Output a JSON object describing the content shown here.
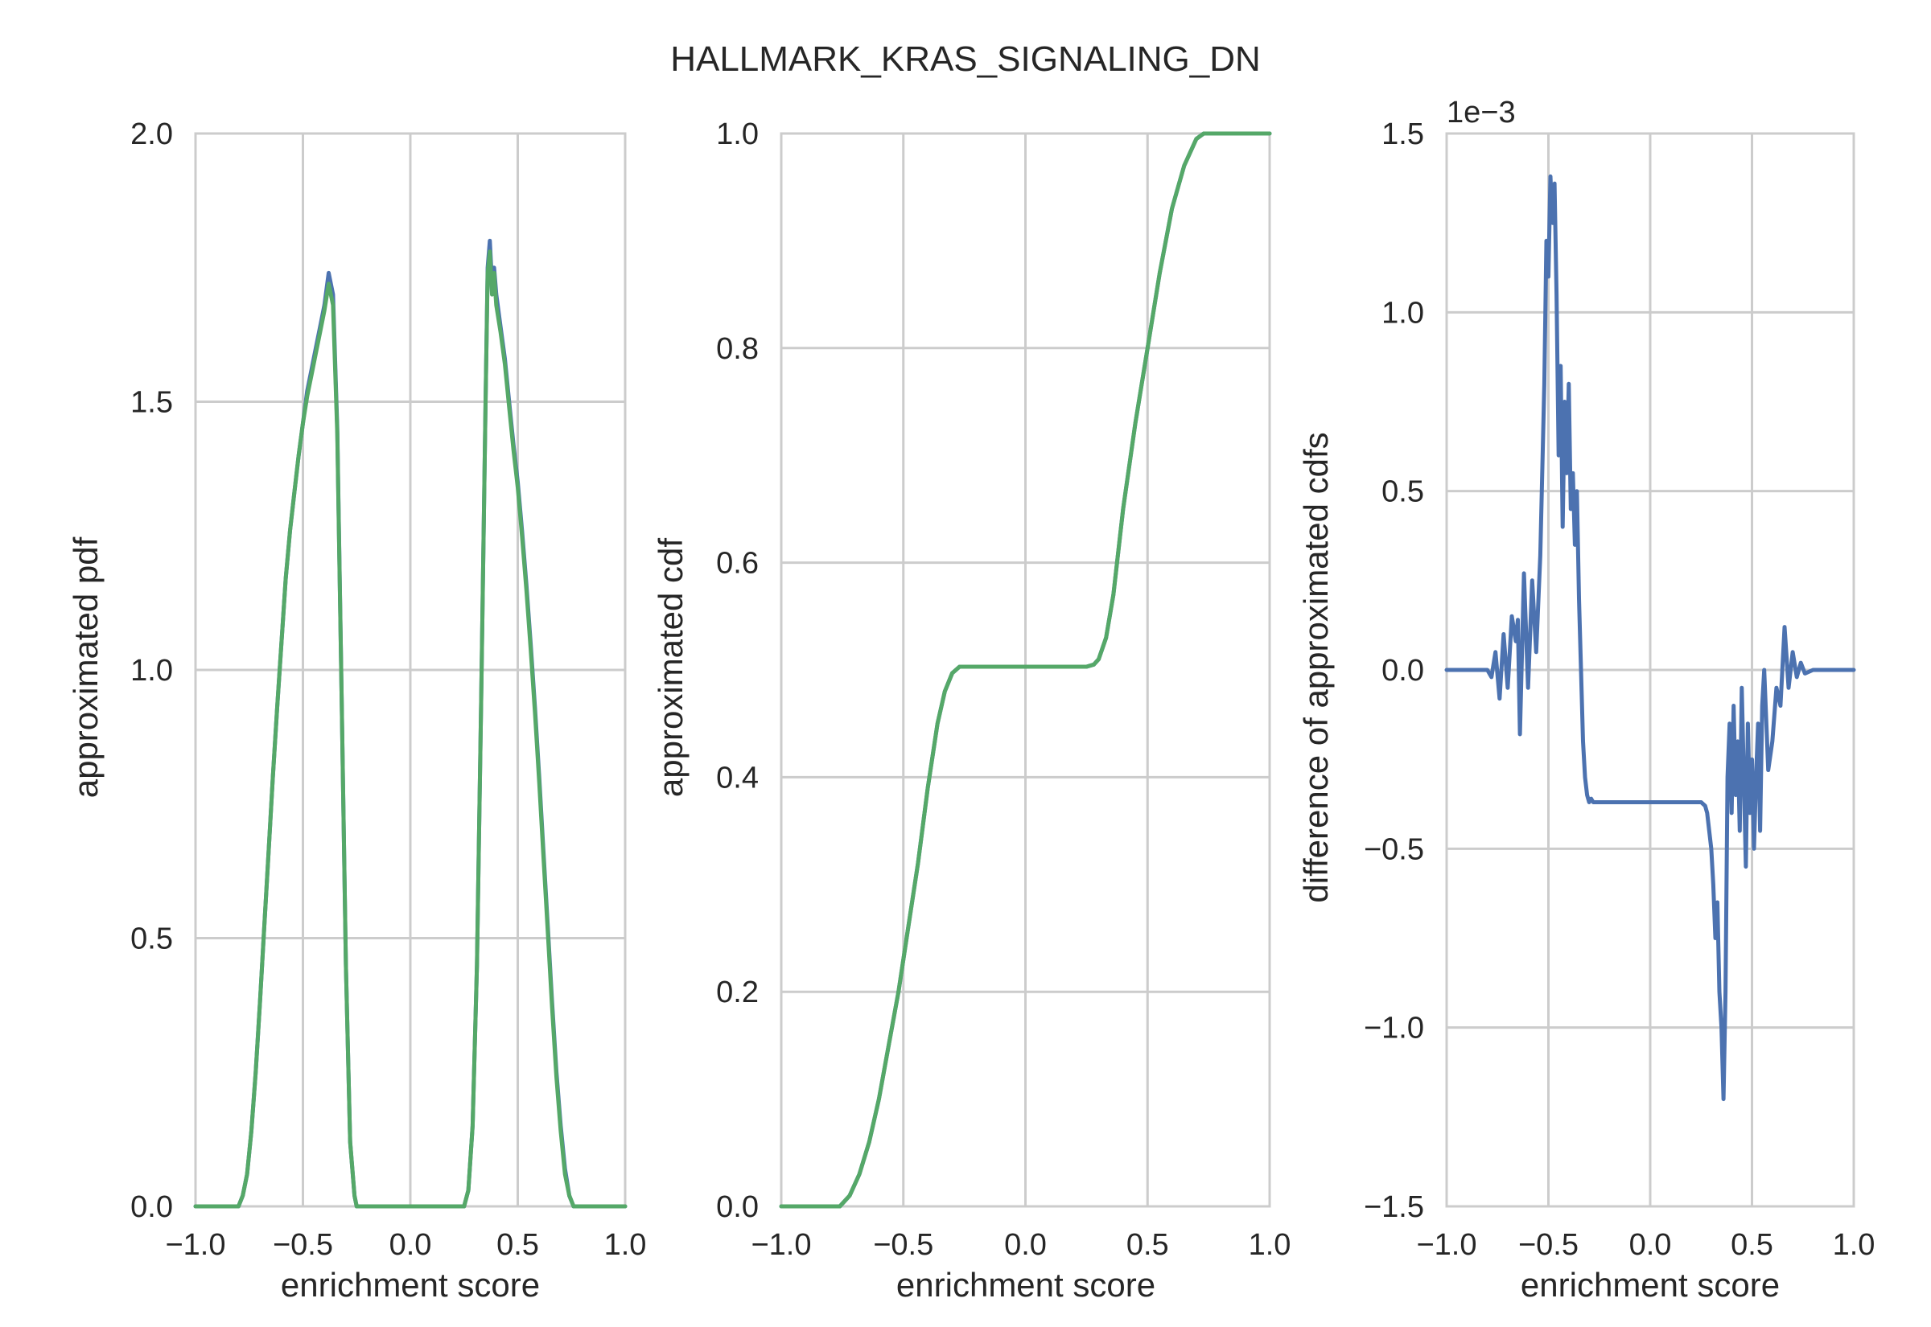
{
  "figure": {
    "title": "HALLMARK_KRAS_SIGNALING_DN"
  },
  "colors": {
    "blue": "#4c72b0",
    "green": "#55a868",
    "grid": "#cccccc",
    "text": "#262626"
  },
  "chart_data": [
    {
      "type": "line",
      "xlabel": "enrichment score",
      "ylabel": "approximated pdf",
      "xlim": [
        -1.0,
        1.0
      ],
      "ylim": [
        0.0,
        2.0
      ],
      "xticks": [
        -1.0,
        -0.5,
        0.0,
        0.5,
        1.0
      ],
      "xtick_labels": [
        "−1.0",
        "−0.5",
        "0.0",
        "0.5",
        "1.0"
      ],
      "yticks": [
        0.0,
        0.5,
        1.0,
        1.5,
        2.0
      ],
      "ytick_labels": [
        "0.0",
        "0.5",
        "1.0",
        "1.5",
        "2.0"
      ],
      "grid": true,
      "series": [
        {
          "color": "#4c72b0",
          "x": [
            -1.0,
            -0.8,
            -0.78,
            -0.76,
            -0.74,
            -0.72,
            -0.7,
            -0.68,
            -0.66,
            -0.64,
            -0.62,
            -0.6,
            -0.58,
            -0.56,
            -0.54,
            -0.52,
            -0.5,
            -0.48,
            -0.46,
            -0.44,
            -0.42,
            -0.4,
            -0.38,
            -0.36,
            -0.34,
            -0.32,
            -0.3,
            -0.28,
            -0.26,
            -0.25,
            0.25,
            0.27,
            0.29,
            0.31,
            0.33,
            0.35,
            0.36,
            0.37,
            0.38,
            0.39,
            0.4,
            0.42,
            0.44,
            0.46,
            0.48,
            0.5,
            0.52,
            0.54,
            0.56,
            0.58,
            0.6,
            0.62,
            0.64,
            0.66,
            0.68,
            0.7,
            0.72,
            0.74,
            0.76,
            0.78,
            0.8,
            1.0
          ],
          "y": [
            0.0,
            0.0,
            0.02,
            0.06,
            0.14,
            0.25,
            0.38,
            0.52,
            0.66,
            0.8,
            0.93,
            1.05,
            1.17,
            1.26,
            1.33,
            1.4,
            1.46,
            1.52,
            1.56,
            1.6,
            1.64,
            1.68,
            1.74,
            1.7,
            1.45,
            0.95,
            0.45,
            0.12,
            0.02,
            0.0,
            0.0,
            0.03,
            0.15,
            0.45,
            0.95,
            1.5,
            1.75,
            1.8,
            1.72,
            1.75,
            1.7,
            1.64,
            1.58,
            1.5,
            1.42,
            1.35,
            1.26,
            1.16,
            1.05,
            0.93,
            0.8,
            0.66,
            0.52,
            0.38,
            0.25,
            0.15,
            0.07,
            0.02,
            0.0,
            0.0,
            0.0,
            0.0
          ]
        },
        {
          "color": "#55a868",
          "x": [
            -1.0,
            -0.8,
            -0.78,
            -0.76,
            -0.74,
            -0.72,
            -0.7,
            -0.68,
            -0.66,
            -0.64,
            -0.62,
            -0.6,
            -0.58,
            -0.56,
            -0.54,
            -0.52,
            -0.5,
            -0.48,
            -0.46,
            -0.44,
            -0.42,
            -0.4,
            -0.38,
            -0.36,
            -0.34,
            -0.32,
            -0.3,
            -0.28,
            -0.26,
            -0.25,
            0.25,
            0.27,
            0.29,
            0.31,
            0.33,
            0.35,
            0.36,
            0.37,
            0.38,
            0.39,
            0.4,
            0.42,
            0.44,
            0.46,
            0.48,
            0.5,
            0.52,
            0.54,
            0.56,
            0.58,
            0.6,
            0.62,
            0.64,
            0.66,
            0.68,
            0.7,
            0.72,
            0.74,
            0.76,
            0.78,
            0.8,
            1.0
          ],
          "y": [
            0.0,
            0.0,
            0.02,
            0.06,
            0.14,
            0.25,
            0.38,
            0.52,
            0.66,
            0.8,
            0.93,
            1.05,
            1.17,
            1.26,
            1.33,
            1.4,
            1.46,
            1.51,
            1.55,
            1.59,
            1.63,
            1.67,
            1.72,
            1.68,
            1.44,
            0.95,
            0.45,
            0.12,
            0.02,
            0.0,
            0.0,
            0.03,
            0.15,
            0.45,
            0.95,
            1.5,
            1.74,
            1.78,
            1.7,
            1.74,
            1.68,
            1.63,
            1.57,
            1.49,
            1.41,
            1.34,
            1.25,
            1.15,
            1.04,
            0.92,
            0.79,
            0.65,
            0.51,
            0.37,
            0.24,
            0.14,
            0.06,
            0.02,
            0.0,
            0.0,
            0.0,
            0.0
          ]
        }
      ]
    },
    {
      "type": "line",
      "xlabel": "enrichment score",
      "ylabel": "approximated cdf",
      "xlim": [
        -1.0,
        1.0
      ],
      "ylim": [
        0.0,
        1.0
      ],
      "xticks": [
        -1.0,
        -0.5,
        0.0,
        0.5,
        1.0
      ],
      "xtick_labels": [
        "−1.0",
        "−0.5",
        "0.0",
        "0.5",
        "1.0"
      ],
      "yticks": [
        0.0,
        0.2,
        0.4,
        0.6,
        0.8,
        1.0
      ],
      "ytick_labels": [
        "0.0",
        "0.2",
        "0.4",
        "0.6",
        "0.8",
        "1.0"
      ],
      "grid": true,
      "series": [
        {
          "color": "#4c72b0",
          "x": [
            -1.0,
            -0.76,
            -0.72,
            -0.68,
            -0.64,
            -0.6,
            -0.56,
            -0.52,
            -0.48,
            -0.44,
            -0.4,
            -0.36,
            -0.33,
            -0.3,
            -0.27,
            -0.25,
            0.25,
            0.28,
            0.3,
            0.33,
            0.36,
            0.4,
            0.45,
            0.5,
            0.55,
            0.6,
            0.65,
            0.7,
            0.73,
            0.76,
            1.0
          ],
          "y": [
            0.0,
            0.0,
            0.01,
            0.03,
            0.06,
            0.1,
            0.15,
            0.2,
            0.26,
            0.32,
            0.39,
            0.45,
            0.48,
            0.497,
            0.503,
            0.503,
            0.503,
            0.505,
            0.51,
            0.53,
            0.57,
            0.65,
            0.73,
            0.8,
            0.87,
            0.93,
            0.97,
            0.995,
            1.0,
            1.0,
            1.0
          ]
        },
        {
          "color": "#55a868",
          "x": [
            -1.0,
            -0.76,
            -0.72,
            -0.68,
            -0.64,
            -0.6,
            -0.56,
            -0.52,
            -0.48,
            -0.44,
            -0.4,
            -0.36,
            -0.33,
            -0.3,
            -0.27,
            -0.25,
            0.25,
            0.28,
            0.3,
            0.33,
            0.36,
            0.4,
            0.45,
            0.5,
            0.55,
            0.6,
            0.65,
            0.7,
            0.73,
            0.76,
            1.0
          ],
          "y": [
            0.0,
            0.0,
            0.01,
            0.03,
            0.06,
            0.1,
            0.15,
            0.2,
            0.26,
            0.32,
            0.39,
            0.45,
            0.48,
            0.497,
            0.503,
            0.503,
            0.503,
            0.505,
            0.51,
            0.53,
            0.57,
            0.65,
            0.73,
            0.8,
            0.87,
            0.93,
            0.97,
            0.995,
            1.0,
            1.0,
            1.0
          ]
        }
      ]
    },
    {
      "type": "line",
      "xlabel": "enrichment score",
      "ylabel": "difference of approximated cdfs",
      "offset_text": "1e−3",
      "xlim": [
        -1.0,
        1.0
      ],
      "ylim": [
        -1.5,
        1.5
      ],
      "xticks": [
        -1.0,
        -0.5,
        0.0,
        0.5,
        1.0
      ],
      "xtick_labels": [
        "−1.0",
        "−0.5",
        "0.0",
        "0.5",
        "1.0"
      ],
      "yticks": [
        -1.5,
        -1.0,
        -0.5,
        0.0,
        0.5,
        1.0,
        1.5
      ],
      "ytick_labels": [
        "−1.5",
        "−1.0",
        "−0.5",
        "0.0",
        "0.5",
        "1.0",
        "1.5"
      ],
      "grid": true,
      "series": [
        {
          "color": "#4c72b0",
          "x": [
            -1.0,
            -0.8,
            -0.78,
            -0.76,
            -0.74,
            -0.72,
            -0.7,
            -0.68,
            -0.66,
            -0.65,
            -0.64,
            -0.62,
            -0.6,
            -0.58,
            -0.56,
            -0.54,
            -0.52,
            -0.51,
            -0.5,
            -0.49,
            -0.48,
            -0.47,
            -0.46,
            -0.45,
            -0.44,
            -0.43,
            -0.42,
            -0.41,
            -0.4,
            -0.39,
            -0.38,
            -0.37,
            -0.36,
            -0.35,
            -0.34,
            -0.33,
            -0.32,
            -0.31,
            -0.3,
            -0.29,
            -0.28,
            -0.26,
            0.25,
            0.27,
            0.28,
            0.3,
            0.31,
            0.32,
            0.33,
            0.34,
            0.35,
            0.36,
            0.37,
            0.38,
            0.39,
            0.4,
            0.41,
            0.42,
            0.43,
            0.44,
            0.45,
            0.46,
            0.47,
            0.48,
            0.49,
            0.5,
            0.51,
            0.52,
            0.53,
            0.54,
            0.55,
            0.56,
            0.58,
            0.6,
            0.62,
            0.64,
            0.66,
            0.68,
            0.7,
            0.72,
            0.74,
            0.76,
            0.8,
            1.0
          ],
          "y": [
            0.0,
            0.0,
            -0.02,
            0.05,
            -0.08,
            0.1,
            -0.05,
            0.15,
            0.08,
            0.14,
            -0.18,
            0.27,
            -0.05,
            0.25,
            0.05,
            0.32,
            0.8,
            1.2,
            1.1,
            1.38,
            1.25,
            1.36,
            1.05,
            0.6,
            0.85,
            0.4,
            0.75,
            0.55,
            0.8,
            0.45,
            0.55,
            0.35,
            0.5,
            0.2,
            0.0,
            -0.2,
            -0.3,
            -0.35,
            -0.37,
            -0.36,
            -0.37,
            -0.37,
            -0.37,
            -0.38,
            -0.4,
            -0.5,
            -0.6,
            -0.75,
            -0.65,
            -0.9,
            -1.0,
            -1.2,
            -0.9,
            -0.3,
            -0.15,
            -0.4,
            -0.1,
            -0.35,
            -0.2,
            -0.45,
            -0.05,
            -0.3,
            -0.55,
            -0.15,
            -0.4,
            -0.25,
            -0.5,
            -0.3,
            -0.15,
            -0.45,
            -0.1,
            0.0,
            -0.28,
            -0.2,
            -0.05,
            -0.1,
            0.12,
            -0.05,
            0.05,
            -0.02,
            0.02,
            -0.01,
            0.0,
            0.0
          ]
        }
      ]
    }
  ]
}
